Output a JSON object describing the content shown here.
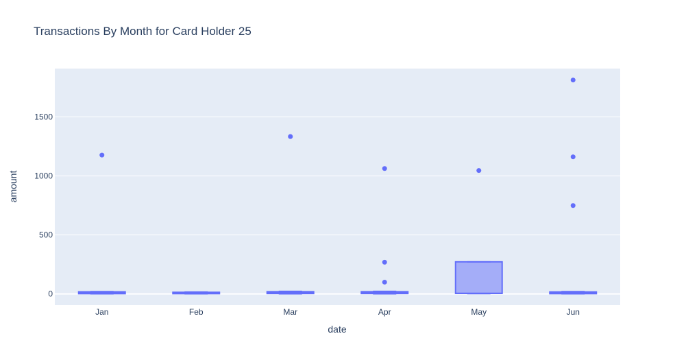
{
  "chart_data": {
    "type": "box",
    "title": "Transactions By Month for Card Holder 25",
    "xlabel": "date",
    "ylabel": "amount",
    "categories": [
      "Jan",
      "Feb",
      "Mar",
      "Apr",
      "May",
      "Jun"
    ],
    "ylim": [
      -95,
      1910
    ],
    "yticks": [
      0,
      500,
      1000,
      1500
    ],
    "grid": true,
    "colors": {
      "plot_bg": "#e5ecf6",
      "box_line": "#636efa",
      "box_fill": "rgba(99,110,250,0.5)",
      "grid": "#ffffff",
      "text": "#2a3f5f"
    },
    "boxes": [
      {
        "category": "Jan",
        "lowerfence": 1,
        "q1": 2,
        "median": 10,
        "q3": 18,
        "upperfence": 20,
        "outliers": [
          1177
        ]
      },
      {
        "category": "Feb",
        "lowerfence": 1,
        "q1": 2,
        "median": 10,
        "q3": 14,
        "upperfence": 16,
        "outliers": []
      },
      {
        "category": "Mar",
        "lowerfence": 1,
        "q1": 3,
        "median": 11,
        "q3": 19,
        "upperfence": 22,
        "outliers": [
          1334
        ]
      },
      {
        "category": "Apr",
        "lowerfence": 1,
        "q1": 3,
        "median": 11,
        "q3": 19,
        "upperfence": 22,
        "outliers": [
          100,
          269,
          1063
        ]
      },
      {
        "category": "May",
        "lowerfence": 2,
        "q1": 4,
        "median": 5,
        "q3": 272,
        "upperfence": 272,
        "outliers": [
          1046
        ]
      },
      {
        "category": "Jun",
        "lowerfence": 1,
        "q1": 2,
        "median": 10,
        "q3": 17,
        "upperfence": 20,
        "outliers": [
          749,
          1162,
          1813
        ]
      }
    ]
  }
}
